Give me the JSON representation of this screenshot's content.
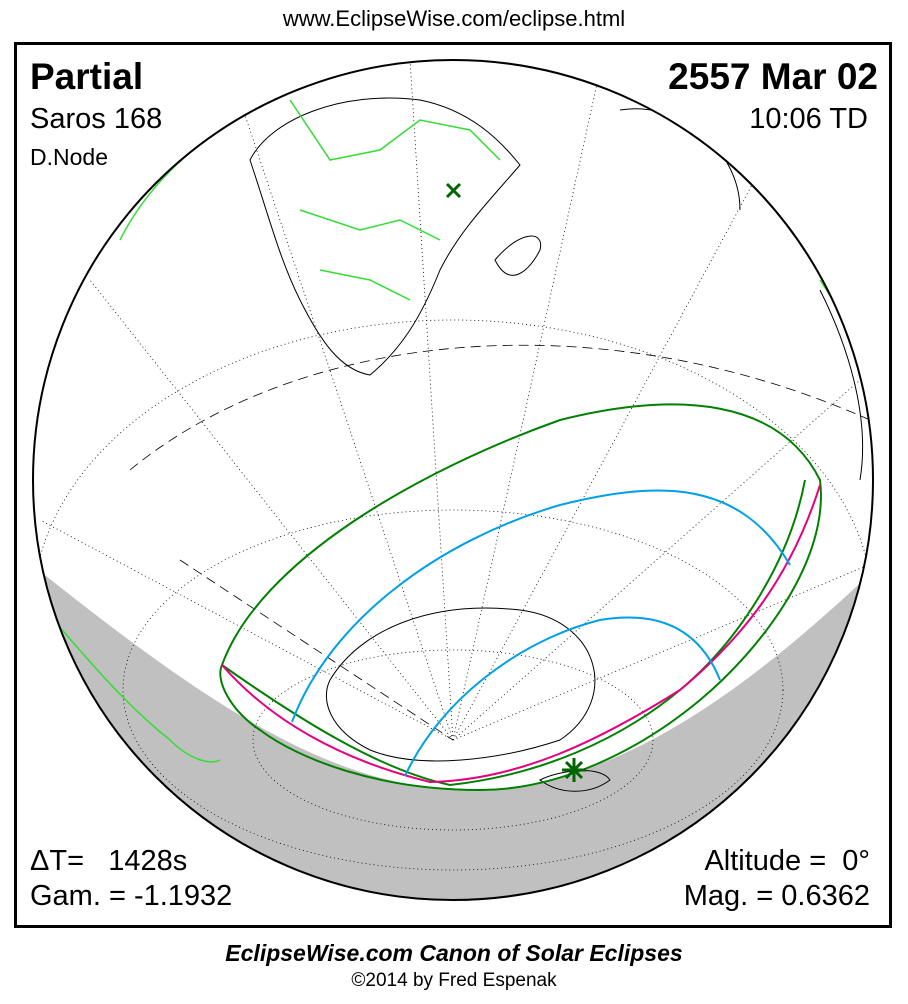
{
  "header": {
    "url": "www.EclipseWise.com/eclipse.html"
  },
  "eclipse": {
    "type": "Partial",
    "saros": "Saros 168",
    "node": "D.Node",
    "date": "2557 Mar 02",
    "time": "10:06 TD",
    "delta_t": "ΔT=   1428s",
    "gamma": "Gam. = -1.1932",
    "altitude": "Altitude =  0°",
    "magnitude": "Mag. = 0.6362"
  },
  "footer": {
    "title": "EclipseWise.com Canon of Solar Eclipses",
    "copyright": "©2014 by Fred Espenak"
  },
  "colors": {
    "night": "#c0c0c0",
    "penumbra_limit": "#008000",
    "max_line": "#e6007e",
    "magnitude_curves": "#00a0e6",
    "borders": "#33dd33"
  },
  "markers": {
    "subsolar": "x-icon",
    "greatest_eclipse": "asterisk-icon"
  }
}
